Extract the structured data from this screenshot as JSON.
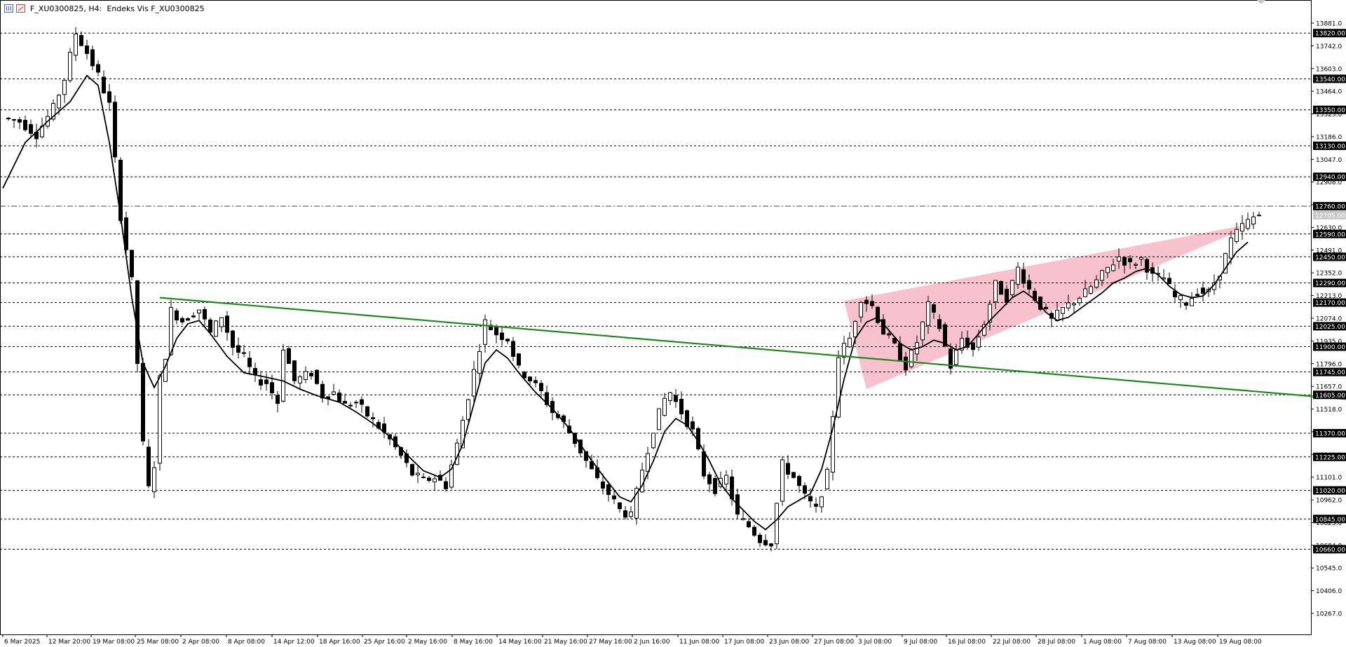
{
  "window": {
    "symbol": "F_XU0300825",
    "timeframe": "H4",
    "description": "Endeks Vis F_XU0300825",
    "title_text": "F_XU0300825, H4:  Endeks Vis F_XU0300825"
  },
  "chart_data": {
    "type": "candlestick",
    "title": "",
    "price_axis_labels": [
      13881.0,
      13742.0,
      13603.0,
      13464.0,
      13325.0,
      13186.0,
      13047.0,
      12908.0,
      12769.0,
      12630.0,
      12491.0,
      12352.0,
      12213.0,
      12074.0,
      11935.0,
      11796.0,
      11657.0,
      11518.0,
      11379.0,
      11240.0,
      11101.0,
      10962.0,
      10823.0,
      10684.0,
      10545.0,
      10406.0,
      10267.0
    ],
    "horizontal_levels": [
      13820.0,
      13540.0,
      13350.0,
      13130.0,
      12940.0,
      12590.0,
      12450.0,
      12290.0,
      12170.0,
      12025.0,
      11900.0,
      11745.0,
      11605.0,
      11370.0,
      11225.0,
      11020.0,
      10845.0,
      10660.0
    ],
    "reference_line": 12760.0,
    "current_price": 12705.0,
    "time_labels": [
      "6 Mar 2025",
      "12 Mar 20:00",
      "19 Mar 08:00",
      "25 Mar 08:00",
      "2 Apr 08:00",
      "8 Apr 08:00",
      "14 Apr 12:00",
      "18 Apr 16:00",
      "25 Apr 16:00",
      "2 May 16:00",
      "8 May 16:00",
      "14 May 16:00",
      "21 May 16:00",
      "27 May 16:00",
      "2 Jun 16:00",
      "11 Jun 08:00",
      "17 Jun 08:00",
      "23 Jun 08:00",
      "27 Jun 08:00",
      "3 Jul 08:00",
      "9 Jul 08:00",
      "16 Jul 08:00",
      "22 Jul 08:00",
      "28 Jul 08:00",
      "1 Aug 08:00",
      "7 Aug 08:00",
      "13 Aug 08:00",
      "19 Aug 08:00"
    ],
    "close_path": [
      [
        0,
        13300
      ],
      [
        3,
        13280
      ],
      [
        6,
        13200
      ],
      [
        9,
        13360
      ],
      [
        11,
        13540
      ],
      [
        13,
        13820
      ],
      [
        15,
        13700
      ],
      [
        17,
        13560
      ],
      [
        19,
        13380
      ],
      [
        21,
        12700
      ],
      [
        22,
        12500
      ],
      [
        23,
        12300
      ],
      [
        25,
        11300
      ],
      [
        26,
        11030
      ],
      [
        27,
        11180
      ],
      [
        28,
        11700
      ],
      [
        29,
        11850
      ],
      [
        30,
        12120
      ],
      [
        32,
        12060
      ],
      [
        35,
        12130
      ],
      [
        37,
        11980
      ],
      [
        39,
        12090
      ],
      [
        41,
        11900
      ],
      [
        43,
        11830
      ],
      [
        45,
        11700
      ],
      [
        47,
        11680
      ],
      [
        49,
        11560
      ],
      [
        50,
        11900
      ],
      [
        52,
        11690
      ],
      [
        55,
        11740
      ],
      [
        57,
        11600
      ],
      [
        59,
        11620
      ],
      [
        61,
        11540
      ],
      [
        63,
        11560
      ],
      [
        65,
        11480
      ],
      [
        67,
        11410
      ],
      [
        69,
        11330
      ],
      [
        71,
        11230
      ],
      [
        73,
        11120
      ],
      [
        75,
        11080
      ],
      [
        77,
        11100
      ],
      [
        79,
        11050
      ],
      [
        81,
        11300
      ],
      [
        83,
        11600
      ],
      [
        85,
        11900
      ],
      [
        86,
        12050
      ],
      [
        88,
        11980
      ],
      [
        90,
        11950
      ],
      [
        92,
        11760
      ],
      [
        94,
        11700
      ],
      [
        96,
        11620
      ],
      [
        98,
        11500
      ],
      [
        100,
        11430
      ],
      [
        102,
        11320
      ],
      [
        104,
        11200
      ],
      [
        106,
        11080
      ],
      [
        108,
        11000
      ],
      [
        110,
        10900
      ],
      [
        112,
        10860
      ],
      [
        114,
        11150
      ],
      [
        116,
        11400
      ],
      [
        118,
        11580
      ],
      [
        119,
        11620
      ],
      [
        121,
        11500
      ],
      [
        123,
        11380
      ],
      [
        125,
        11120
      ],
      [
        127,
        11030
      ],
      [
        129,
        11100
      ],
      [
        131,
        10860
      ],
      [
        133,
        10800
      ],
      [
        135,
        10720
      ],
      [
        137,
        10700
      ],
      [
        139,
        11180
      ],
      [
        141,
        11100
      ],
      [
        143,
        10980
      ],
      [
        145,
        10900
      ],
      [
        147,
        11120
      ],
      [
        149,
        11850
      ],
      [
        151,
        11950
      ],
      [
        153,
        12200
      ],
      [
        155,
        12150
      ],
      [
        157,
        11990
      ],
      [
        159,
        11900
      ],
      [
        161,
        11780
      ],
      [
        163,
        11930
      ],
      [
        165,
        12150
      ],
      [
        167,
        12020
      ],
      [
        169,
        11780
      ],
      [
        171,
        11950
      ],
      [
        173,
        11880
      ],
      [
        175,
        12050
      ],
      [
        177,
        12280
      ],
      [
        179,
        12200
      ],
      [
        181,
        12380
      ],
      [
        183,
        12250
      ],
      [
        185,
        12150
      ],
      [
        187,
        12060
      ],
      [
        189,
        12130
      ],
      [
        191,
        12180
      ],
      [
        193,
        12230
      ],
      [
        195,
        12300
      ],
      [
        197,
        12380
      ],
      [
        199,
        12450
      ],
      [
        201,
        12400
      ],
      [
        203,
        12440
      ],
      [
        205,
        12330
      ],
      [
        207,
        12320
      ],
      [
        209,
        12200
      ],
      [
        211,
        12170
      ],
      [
        213,
        12240
      ],
      [
        215,
        12230
      ],
      [
        217,
        12360
      ],
      [
        219,
        12550
      ],
      [
        221,
        12640
      ],
      [
        223,
        12690
      ],
      [
        224,
        12705
      ]
    ],
    "moving_average": [
      [
        0,
        12870
      ],
      [
        4,
        13150
      ],
      [
        8,
        13280
      ],
      [
        12,
        13400
      ],
      [
        15,
        13560
      ],
      [
        17,
        13500
      ],
      [
        19,
        13150
      ],
      [
        21,
        12700
      ],
      [
        23,
        12200
      ],
      [
        25,
        11800
      ],
      [
        27,
        11650
      ],
      [
        29,
        11780
      ],
      [
        31,
        11950
      ],
      [
        33,
        12040
      ],
      [
        35,
        12060
      ],
      [
        37,
        11980
      ],
      [
        40,
        11840
      ],
      [
        43,
        11740
      ],
      [
        46,
        11720
      ],
      [
        50,
        11690
      ],
      [
        53,
        11640
      ],
      [
        56,
        11600
      ],
      [
        60,
        11560
      ],
      [
        63,
        11500
      ],
      [
        66,
        11430
      ],
      [
        69,
        11350
      ],
      [
        72,
        11240
      ],
      [
        75,
        11140
      ],
      [
        78,
        11100
      ],
      [
        80,
        11150
      ],
      [
        82,
        11300
      ],
      [
        84,
        11550
      ],
      [
        86,
        11800
      ],
      [
        88,
        11880
      ],
      [
        90,
        11830
      ],
      [
        92,
        11740
      ],
      [
        95,
        11620
      ],
      [
        98,
        11520
      ],
      [
        101,
        11400
      ],
      [
        104,
        11250
      ],
      [
        107,
        11110
      ],
      [
        110,
        10980
      ],
      [
        112,
        10950
      ],
      [
        114,
        11050
      ],
      [
        116,
        11200
      ],
      [
        118,
        11380
      ],
      [
        120,
        11460
      ],
      [
        122,
        11420
      ],
      [
        124,
        11320
      ],
      [
        126,
        11200
      ],
      [
        128,
        11060
      ],
      [
        130,
        10970
      ],
      [
        132,
        10900
      ],
      [
        134,
        10830
      ],
      [
        136,
        10780
      ],
      [
        138,
        10840
      ],
      [
        140,
        10920
      ],
      [
        142,
        10960
      ],
      [
        144,
        11000
      ],
      [
        146,
        11150
      ],
      [
        148,
        11400
      ],
      [
        150,
        11700
      ],
      [
        152,
        11950
      ],
      [
        154,
        12050
      ],
      [
        156,
        12080
      ],
      [
        158,
        12000
      ],
      [
        160,
        11920
      ],
      [
        162,
        11880
      ],
      [
        164,
        11900
      ],
      [
        166,
        11940
      ],
      [
        168,
        11920
      ],
      [
        170,
        11880
      ],
      [
        172,
        11900
      ],
      [
        174,
        11980
      ],
      [
        176,
        12060
      ],
      [
        178,
        12130
      ],
      [
        180,
        12200
      ],
      [
        182,
        12240
      ],
      [
        184,
        12190
      ],
      [
        186,
        12110
      ],
      [
        188,
        12060
      ],
      [
        190,
        12080
      ],
      [
        192,
        12130
      ],
      [
        194,
        12180
      ],
      [
        196,
        12230
      ],
      [
        198,
        12290
      ],
      [
        200,
        12320
      ],
      [
        202,
        12360
      ],
      [
        204,
        12380
      ],
      [
        206,
        12340
      ],
      [
        208,
        12270
      ],
      [
        210,
        12220
      ],
      [
        212,
        12200
      ],
      [
        214,
        12210
      ],
      [
        216,
        12280
      ],
      [
        218,
        12380
      ],
      [
        220,
        12480
      ],
      [
        222,
        12540
      ]
    ],
    "trendline": {
      "from": [
        28,
        12200
      ],
      "to": [
        256,
        11530
      ],
      "color": "#1a8a1a"
    },
    "wedge": {
      "points": [
        [
          150,
          12180
        ],
        [
          224,
          12660
        ],
        [
          154,
          11640
        ]
      ],
      "color": "#f7b6c5"
    }
  }
}
